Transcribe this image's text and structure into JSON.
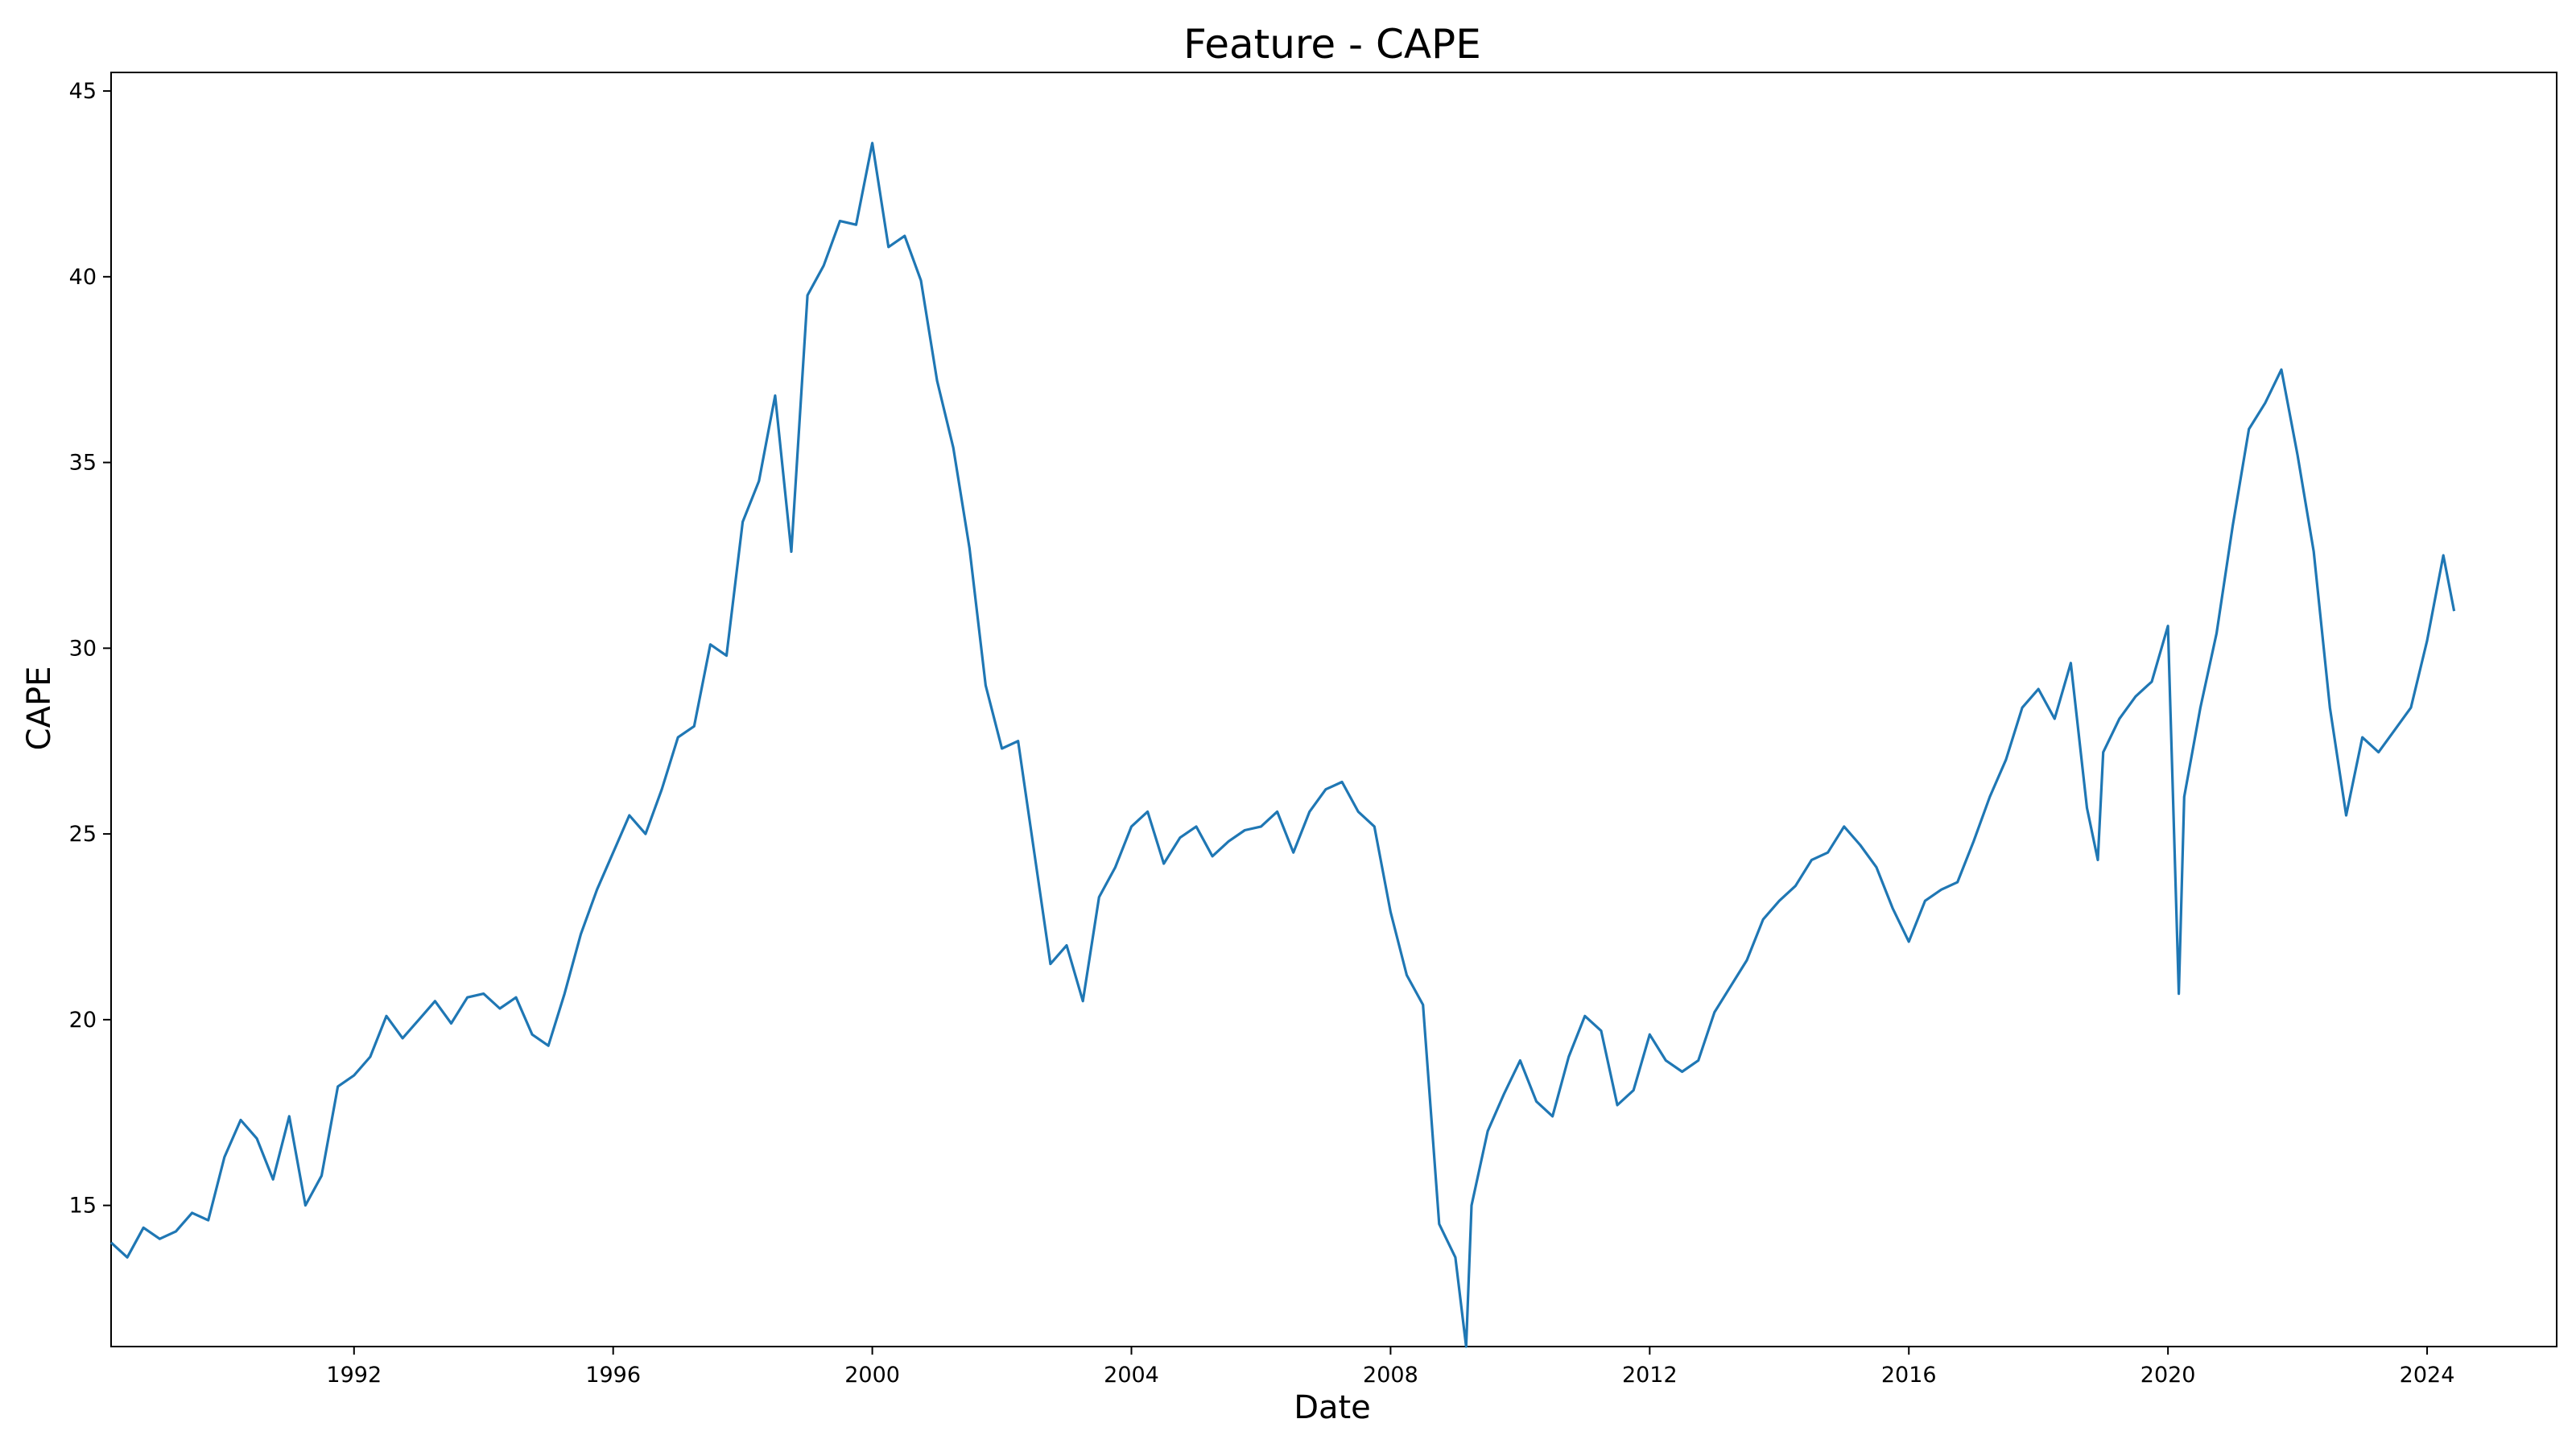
{
  "chart_data": {
    "type": "line",
    "title": "Feature - CAPE",
    "xlabel": "Date",
    "ylabel": "CAPE",
    "xlim": [
      "1988-04-01",
      "2026-01-01"
    ],
    "ylim": [
      11.2,
      45.5
    ],
    "x_ticks": [
      "1992",
      "1996",
      "2000",
      "2004",
      "2008",
      "2012",
      "2016",
      "2020",
      "2024"
    ],
    "y_ticks": [
      "15",
      "20",
      "25",
      "30",
      "35",
      "40",
      "45"
    ],
    "grid": false,
    "legend": "none",
    "line_color": "#1f77b4",
    "series": [
      {
        "x": [
          "1988-04",
          "1988-07",
          "1988-10",
          "1989-01",
          "1989-04",
          "1989-07",
          "1989-10",
          "1990-01",
          "1990-04",
          "1990-07",
          "1990-10",
          "1991-01",
          "1991-04",
          "1991-07",
          "1991-10",
          "1992-01",
          "1992-04",
          "1992-07",
          "1992-10",
          "1993-01",
          "1993-04",
          "1993-07",
          "1993-10",
          "1994-01",
          "1994-04",
          "1994-07",
          "1994-10",
          "1995-01",
          "1995-04",
          "1995-07",
          "1995-10",
          "1996-01",
          "1996-04",
          "1996-07",
          "1996-10",
          "1997-01",
          "1997-04",
          "1997-07",
          "1997-10",
          "1998-01",
          "1998-04",
          "1998-07",
          "1998-10",
          "1999-01",
          "1999-04",
          "1999-07",
          "1999-10",
          "2000-01",
          "2000-04",
          "2000-07",
          "2000-10",
          "2001-01",
          "2001-04",
          "2001-07",
          "2001-10",
          "2002-01",
          "2002-04",
          "2002-07",
          "2002-10",
          "2003-01",
          "2003-04",
          "2003-07",
          "2003-10",
          "2004-01",
          "2004-04",
          "2004-07",
          "2004-10",
          "2005-01",
          "2005-04",
          "2005-07",
          "2005-10",
          "2006-01",
          "2006-04",
          "2006-07",
          "2006-10",
          "2007-01",
          "2007-04",
          "2007-07",
          "2007-10",
          "2008-01",
          "2008-04",
          "2008-07",
          "2008-10",
          "2009-01",
          "2009-03",
          "2009-04",
          "2009-07",
          "2009-10",
          "2010-01",
          "2010-04",
          "2010-07",
          "2010-10",
          "2011-01",
          "2011-04",
          "2011-07",
          "2011-10",
          "2012-01",
          "2012-04",
          "2012-07",
          "2012-10",
          "2013-01",
          "2013-04",
          "2013-07",
          "2013-10",
          "2014-01",
          "2014-04",
          "2014-07",
          "2014-10",
          "2015-01",
          "2015-04",
          "2015-07",
          "2015-10",
          "2016-01",
          "2016-04",
          "2016-07",
          "2016-10",
          "2017-01",
          "2017-04",
          "2017-07",
          "2017-10",
          "2018-01",
          "2018-04",
          "2018-07",
          "2018-10",
          "2018-12",
          "2019-01",
          "2019-04",
          "2019-07",
          "2019-10",
          "2020-01",
          "2020-03",
          "2020-04",
          "2020-07",
          "2020-10",
          "2021-01",
          "2021-04",
          "2021-07",
          "2021-10",
          "2022-01",
          "2022-04",
          "2022-07",
          "2022-10",
          "2023-01",
          "2023-04",
          "2023-07",
          "2023-10",
          "2024-01",
          "2024-04",
          "2024-06"
        ],
        "y": [
          14.0,
          13.6,
          14.4,
          14.1,
          14.3,
          14.8,
          14.6,
          16.3,
          17.3,
          16.8,
          15.7,
          17.4,
          15.0,
          15.8,
          18.2,
          18.5,
          19.0,
          20.1,
          19.5,
          20.0,
          20.5,
          19.9,
          20.6,
          20.7,
          20.3,
          20.6,
          19.6,
          19.3,
          20.7,
          22.3,
          23.5,
          24.5,
          25.5,
          25.0,
          26.2,
          27.6,
          27.9,
          30.1,
          29.8,
          33.4,
          34.5,
          36.8,
          32.6,
          39.5,
          40.3,
          41.5,
          41.4,
          43.6,
          40.8,
          41.1,
          39.9,
          37.2,
          35.4,
          32.7,
          29.0,
          27.3,
          27.5,
          24.5,
          21.5,
          22.0,
          20.5,
          23.3,
          24.1,
          25.2,
          25.6,
          24.2,
          24.9,
          25.2,
          24.4,
          24.8,
          25.1,
          25.2,
          25.6,
          24.5,
          25.6,
          26.2,
          26.4,
          25.6,
          25.2,
          22.9,
          21.2,
          20.4,
          14.5,
          13.6,
          11.2,
          15.0,
          17.0,
          18.0,
          18.9,
          17.8,
          17.4,
          19.0,
          20.1,
          19.7,
          17.7,
          18.1,
          19.6,
          18.9,
          18.6,
          18.9,
          20.2,
          20.9,
          21.6,
          22.7,
          23.2,
          23.6,
          24.3,
          24.5,
          25.2,
          24.7,
          24.1,
          23.0,
          22.1,
          23.2,
          23.5,
          23.7,
          24.8,
          26.0,
          27.0,
          28.4,
          28.9,
          28.1,
          29.6,
          25.7,
          24.3,
          27.2,
          28.1,
          28.7,
          29.1,
          30.6,
          20.7,
          26.0,
          28.4,
          30.4,
          33.3,
          35.9,
          36.6,
          37.5,
          35.2,
          32.6,
          28.4,
          25.5,
          27.6,
          27.2,
          27.8,
          28.4,
          30.2,
          32.5,
          31.0
        ]
      }
    ]
  }
}
